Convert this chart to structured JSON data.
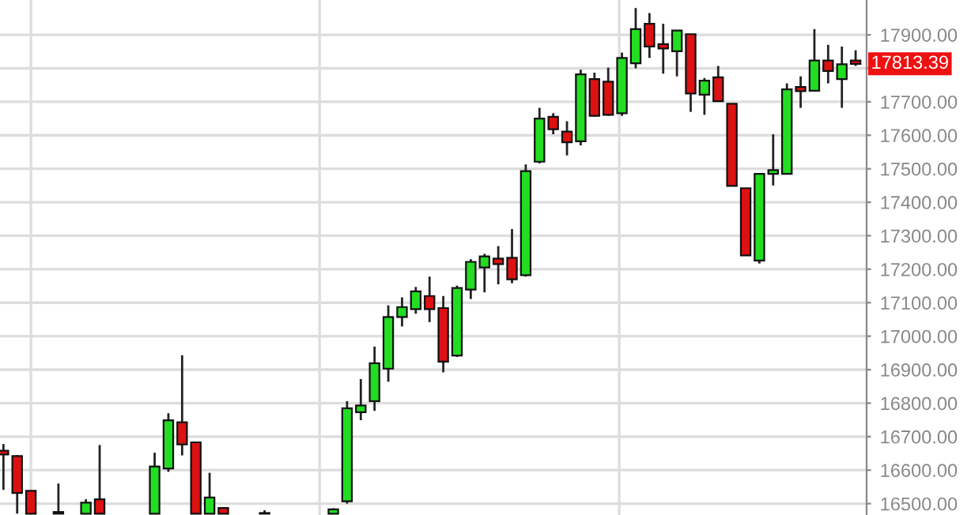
{
  "chart_data": {
    "type": "candlestick",
    "categories": [
      null,
      null,
      null,
      null,
      null,
      null,
      null,
      null,
      null,
      null,
      null,
      null,
      null,
      null,
      null,
      null,
      null,
      null,
      null,
      null,
      null,
      null,
      null,
      null,
      null,
      null,
      null,
      null,
      null,
      null,
      null,
      null,
      null,
      null,
      null,
      null,
      null,
      null,
      null,
      null,
      null,
      null,
      null,
      null,
      null,
      null,
      null,
      null,
      null,
      null,
      null,
      null,
      null,
      null,
      null,
      null,
      null,
      null,
      null,
      null,
      null,
      null,
      null
    ],
    "ohlc": [
      [
        16658,
        16678,
        16541,
        16647
      ],
      [
        16642,
        16645,
        16470,
        16532
      ],
      [
        16538,
        16540,
        16470,
        16470
      ],
      null,
      [
        16475,
        16560,
        16470,
        16470
      ],
      null,
      [
        16470,
        16513,
        16470,
        16503
      ],
      [
        16513,
        16675,
        16470,
        16470
      ],
      null,
      null,
      null,
      [
        16470,
        16652,
        16470,
        16611
      ],
      [
        16605,
        16770,
        16595,
        16749
      ],
      [
        16743,
        16943,
        16644,
        16677
      ],
      [
        16683,
        16685,
        16470,
        16470
      ],
      [
        16470,
        16592,
        16470,
        16518
      ],
      [
        16487,
        16487,
        16470,
        16470
      ],
      null,
      null,
      [
        16472,
        16480,
        16470,
        16470
      ],
      null,
      null,
      null,
      null,
      [
        16470,
        16486,
        16470,
        16483
      ],
      [
        16507,
        16806,
        16500,
        16785
      ],
      [
        16773,
        16872,
        16749,
        16793
      ],
      [
        16806,
        16969,
        16777,
        16919
      ],
      [
        16903,
        17092,
        16864,
        17057
      ],
      [
        17057,
        17116,
        17029,
        17087
      ],
      [
        17081,
        17147,
        17067,
        17134
      ],
      [
        17120,
        17178,
        17042,
        17081
      ],
      [
        17084,
        17120,
        16892,
        16924
      ],
      [
        16942,
        17151,
        16938,
        17144
      ],
      [
        17139,
        17230,
        17111,
        17222
      ],
      [
        17205,
        17246,
        17131,
        17238
      ],
      [
        17232,
        17269,
        17155,
        17215
      ],
      [
        17234,
        17320,
        17158,
        17170
      ],
      [
        17182,
        17513,
        17178,
        17493
      ],
      [
        17521,
        17682,
        17516,
        17650
      ],
      [
        17655,
        17666,
        17603,
        17618
      ],
      [
        17611,
        17642,
        17540,
        17579
      ],
      [
        17582,
        17796,
        17570,
        17782
      ],
      [
        17768,
        17787,
        17655,
        17658
      ],
      [
        17760,
        17802,
        17658,
        17661
      ],
      [
        17666,
        17847,
        17658,
        17831
      ],
      [
        17815,
        17980,
        17800,
        17917
      ],
      [
        17933,
        17965,
        17831,
        17865
      ],
      [
        17872,
        17933,
        17784,
        17859
      ],
      [
        17851,
        17913,
        17776,
        17913
      ],
      [
        17902,
        17902,
        17670,
        17725
      ],
      [
        17721,
        17771,
        17661,
        17763
      ],
      [
        17773,
        17807,
        17702,
        17702
      ],
      [
        17694,
        17694,
        17449,
        17449
      ],
      [
        17442,
        17442,
        17241,
        17241
      ],
      [
        17226,
        17485,
        17217,
        17485
      ],
      [
        17485,
        17603,
        17450,
        17496
      ],
      [
        17485,
        17755,
        17483,
        17737
      ],
      [
        17744,
        17776,
        17682,
        17732
      ],
      [
        17733,
        17917,
        17733,
        17823
      ],
      [
        17823,
        17870,
        17755,
        17792
      ],
      [
        17768,
        17865,
        17682,
        17812
      ],
      [
        17823,
        17854,
        17807,
        17813.39
      ]
    ],
    "colors": [
      "#dd1111",
      "#dd1111",
      "#dd1111",
      null,
      "#dd1111",
      null,
      "#22dd22",
      "#dd1111",
      null,
      null,
      null,
      "#22dd22",
      "#22dd22",
      "#dd1111",
      "#dd1111",
      "#22dd22",
      "#dd1111",
      null,
      null,
      "#dd1111",
      null,
      null,
      null,
      null,
      "#22dd22",
      "#22dd22",
      "#22dd22",
      "#22dd22",
      "#22dd22",
      "#22dd22",
      "#22dd22",
      "#dd1111",
      "#dd1111",
      "#22dd22",
      "#22dd22",
      "#22dd22",
      "#dd1111",
      "#dd1111",
      "#22dd22",
      "#22dd22",
      "#dd1111",
      "#dd1111",
      "#22dd22",
      "#dd1111",
      "#dd1111",
      "#22dd22",
      "#22dd22",
      "#dd1111",
      "#dd1111",
      "#22dd22",
      "#dd1111",
      "#22dd22",
      "#dd1111",
      "#dd1111",
      "#dd1111",
      "#22dd22",
      "#22dd22",
      "#22dd22",
      "#dd1111",
      "#22dd22",
      "#dd1111",
      "#22dd22",
      "#dd1111"
    ],
    "ylim": [
      16466,
      18004
    ],
    "yticks": [
      {
        "value": 16500,
        "label": "16500.00"
      },
      {
        "value": 16600,
        "label": "16600.00"
      },
      {
        "value": 16700,
        "label": "16700.00"
      },
      {
        "value": 16800,
        "label": "16800.00"
      },
      {
        "value": 16900,
        "label": "16900.00"
      },
      {
        "value": 17000,
        "label": "17000.00"
      },
      {
        "value": 17100,
        "label": "17100.00"
      },
      {
        "value": 17200,
        "label": "17200.00"
      },
      {
        "value": 17300,
        "label": "17300.00"
      },
      {
        "value": 17400,
        "label": "17400.00"
      },
      {
        "value": 17500,
        "label": "17500.00"
      },
      {
        "value": 17600,
        "label": "17600.00"
      },
      {
        "value": 17700,
        "label": "17700.00"
      },
      {
        "value": 17800,
        "label": null
      },
      {
        "value": 17900,
        "label": "17900.00"
      }
    ],
    "grid": "y",
    "tick_labels": "y",
    "annotations": [
      "17813.39"
    ]
  }
}
